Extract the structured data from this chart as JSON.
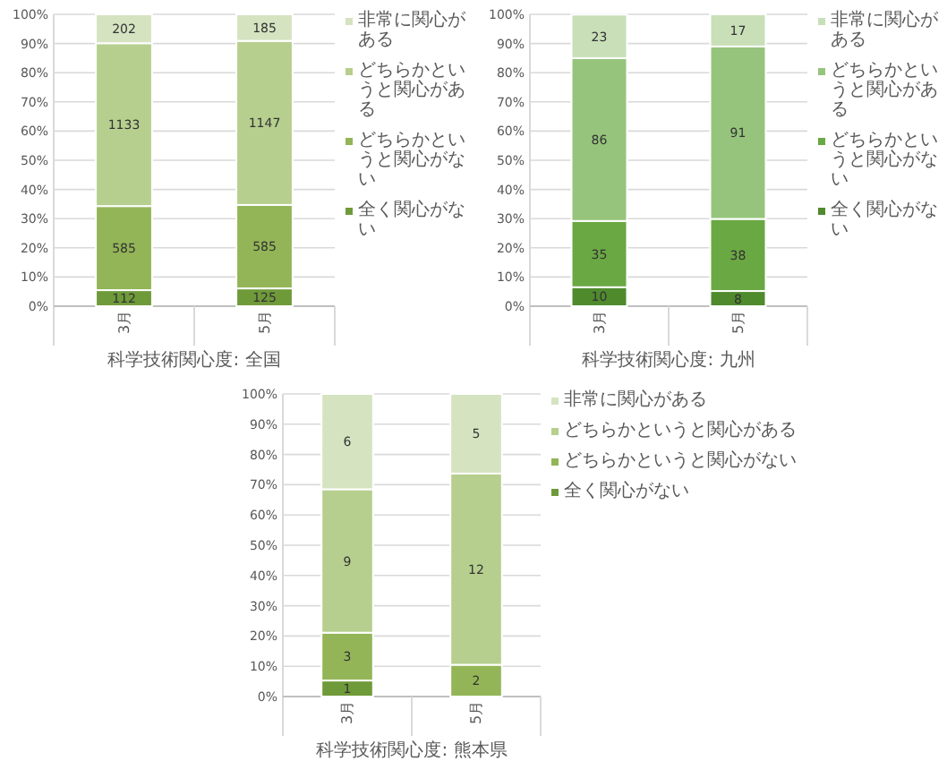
{
  "chart_data": [
    {
      "type": "bar",
      "stacked": true,
      "xlabel": "科学技術関心度: 全国",
      "categories": [
        "3月",
        "5月"
      ],
      "ylim": [
        0,
        100
      ],
      "yticks": [
        {
          "value": 0,
          "label": "0%"
        },
        {
          "value": 10,
          "label": "10%"
        },
        {
          "value": 20,
          "label": "20%"
        },
        {
          "value": 30,
          "label": "30%"
        },
        {
          "value": 40,
          "label": "40%"
        },
        {
          "value": 50,
          "label": "50%"
        },
        {
          "value": 60,
          "label": "60%"
        },
        {
          "value": 70,
          "label": "70%"
        },
        {
          "value": 80,
          "label": "80%"
        },
        {
          "value": 90,
          "label": "90%"
        },
        {
          "value": 100,
          "label": "100%"
        }
      ],
      "grid": "y",
      "legend": "right",
      "series": [
        {
          "name": "全く関心がない",
          "color": "#6f9a3a",
          "values": [
            5.5,
            6.1
          ]
        },
        {
          "name": "どちらかというと関心がない",
          "color": "#93b557",
          "values": [
            28.8,
            28.6
          ]
        },
        {
          "name": "どちらかというと関心がある",
          "color": "#b6cf8e",
          "values": [
            55.8,
            56.2
          ]
        },
        {
          "name": "非常に関心がある",
          "color": "#d5e3c1",
          "values": [
            9.9,
            9.1
          ]
        }
      ],
      "annotations": [
        "112",
        "585",
        "1133",
        "202",
        "125",
        "585",
        "1147",
        "185"
      ]
    },
    {
      "type": "bar",
      "stacked": true,
      "xlabel": "科学技術関心度: 九州",
      "categories": [
        "3月",
        "5月"
      ],
      "ylim": [
        0,
        100
      ],
      "yticks": [
        {
          "value": 0,
          "label": "0%"
        },
        {
          "value": 10,
          "label": "10%"
        },
        {
          "value": 20,
          "label": "20%"
        },
        {
          "value": 30,
          "label": "30%"
        },
        {
          "value": 40,
          "label": "40%"
        },
        {
          "value": 50,
          "label": "50%"
        },
        {
          "value": 60,
          "label": "60%"
        },
        {
          "value": 70,
          "label": "70%"
        },
        {
          "value": 80,
          "label": "80%"
        },
        {
          "value": 90,
          "label": "90%"
        },
        {
          "value": 100,
          "label": "100%"
        }
      ],
      "grid": "y",
      "legend": "right",
      "series": [
        {
          "name": "全く関心がない",
          "color": "#4f8a2c",
          "values": [
            6.5,
            5.2
          ]
        },
        {
          "name": "どちらかというと関心がない",
          "color": "#6aa843",
          "values": [
            22.7,
            24.7
          ]
        },
        {
          "name": "どちらかというと関心がある",
          "color": "#96c47c",
          "values": [
            55.8,
            59.1
          ]
        },
        {
          "name": "非常に関心がある",
          "color": "#c8dfb8",
          "values": [
            14.9,
            11.0
          ]
        }
      ],
      "annotations": [
        "10",
        "35",
        "86",
        "23",
        "8",
        "38",
        "91",
        "17"
      ]
    },
    {
      "type": "bar",
      "stacked": true,
      "xlabel": "科学技術関心度: 熊本県",
      "categories": [
        "3月",
        "5月"
      ],
      "ylim": [
        0,
        100
      ],
      "yticks": [
        {
          "value": 0,
          "label": "0%"
        },
        {
          "value": 10,
          "label": "10%"
        },
        {
          "value": 20,
          "label": "20%"
        },
        {
          "value": 30,
          "label": "30%"
        },
        {
          "value": 40,
          "label": "40%"
        },
        {
          "value": 50,
          "label": "50%"
        },
        {
          "value": 60,
          "label": "60%"
        },
        {
          "value": 70,
          "label": "70%"
        },
        {
          "value": 80,
          "label": "80%"
        },
        {
          "value": 90,
          "label": "90%"
        },
        {
          "value": 100,
          "label": "100%"
        }
      ],
      "grid": "y",
      "legend": "right",
      "series": [
        {
          "name": "全く関心がない",
          "color": "#6f9a3a",
          "values": [
            5.3,
            0
          ]
        },
        {
          "name": "どちらかというと関心がない",
          "color": "#93b557",
          "values": [
            15.8,
            10.5
          ]
        },
        {
          "name": "どちらかというと関心がある",
          "color": "#b6cf8e",
          "values": [
            47.4,
            63.2
          ]
        },
        {
          "name": "非常に関心がある",
          "color": "#d5e3c1",
          "values": [
            31.5,
            26.3
          ]
        }
      ],
      "annotations": [
        "1",
        "3",
        "9",
        "6",
        "2",
        "12",
        "5"
      ]
    }
  ]
}
